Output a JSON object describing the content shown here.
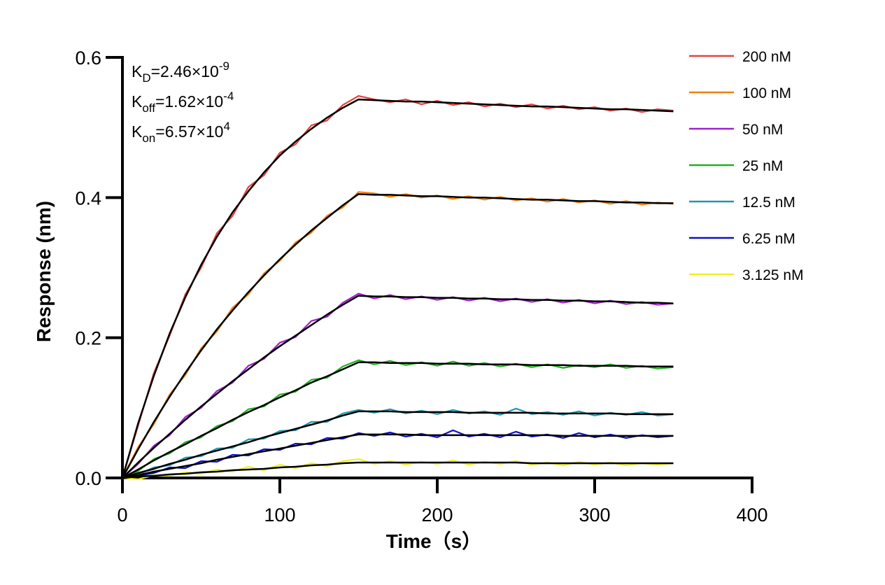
{
  "chart_data": {
    "type": "line",
    "x_label": "Time（s）",
    "y_label": "Response (nm)",
    "x": [
      0,
      10,
      20,
      30,
      40,
      50,
      60,
      70,
      80,
      90,
      100,
      110,
      120,
      130,
      140,
      150,
      160,
      170,
      180,
      190,
      200,
      210,
      220,
      230,
      240,
      250,
      260,
      270,
      280,
      290,
      300,
      310,
      320,
      330,
      340,
      350
    ],
    "xlim": [
      0,
      400
    ],
    "xticks": [
      0,
      100,
      200,
      300,
      400
    ],
    "ylim": [
      0,
      0.6
    ],
    "yticks": [
      {
        "value": 0,
        "label": "0.0"
      },
      0.2,
      0.4,
      0.6
    ],
    "legend": "right",
    "fit_color": "#000000",
    "annotations": [
      {
        "symbol": "K",
        "subscript": "D",
        "text": "=2.46×10",
        "superscript": "-9"
      },
      {
        "symbol": "K",
        "subscript": "off",
        "text": "=1.62×10",
        "superscript": "-4"
      },
      {
        "symbol": "K",
        "subscript": "on",
        "text": "=6.57×10",
        "superscript": "4"
      }
    ],
    "series": [
      {
        "name": "200 nM",
        "color": "#e84040",
        "values": [
          0,
          0.075,
          0.15,
          0.203,
          0.262,
          0.3,
          0.349,
          0.374,
          0.415,
          0.432,
          0.464,
          0.476,
          0.503,
          0.51,
          0.532,
          0.545,
          0.54,
          0.536,
          0.54,
          0.533,
          0.538,
          0.532,
          0.536,
          0.53,
          0.534,
          0.529,
          0.533,
          0.527,
          0.531,
          0.526,
          0.529,
          0.524,
          0.527,
          0.522,
          0.526,
          0.524
        ],
        "fit": [
          0,
          0.078,
          0.146,
          0.206,
          0.258,
          0.304,
          0.344,
          0.379,
          0.409,
          0.436,
          0.46,
          0.48,
          0.498,
          0.514,
          0.528,
          0.54,
          0.539,
          0.538,
          0.537,
          0.537,
          0.536,
          0.535,
          0.534,
          0.533,
          0.532,
          0.531,
          0.53,
          0.53,
          0.529,
          0.528,
          0.527,
          0.526,
          0.526,
          0.525,
          0.524,
          0.523
        ]
      },
      {
        "name": "100 nM",
        "color": "#f08010",
        "values": [
          0,
          0.044,
          0.077,
          0.119,
          0.147,
          0.185,
          0.209,
          0.243,
          0.262,
          0.292,
          0.31,
          0.336,
          0.35,
          0.374,
          0.386,
          0.408,
          0.406,
          0.401,
          0.405,
          0.4,
          0.403,
          0.398,
          0.402,
          0.397,
          0.401,
          0.396,
          0.399,
          0.394,
          0.398,
          0.393,
          0.396,
          0.391,
          0.395,
          0.39,
          0.393,
          0.391
        ],
        "fit": [
          0,
          0.041,
          0.08,
          0.116,
          0.15,
          0.182,
          0.212,
          0.239,
          0.265,
          0.289,
          0.312,
          0.333,
          0.353,
          0.371,
          0.389,
          0.405,
          0.404,
          0.404,
          0.403,
          0.402,
          0.402,
          0.401,
          0.4,
          0.4,
          0.399,
          0.398,
          0.397,
          0.397,
          0.396,
          0.395,
          0.395,
          0.394,
          0.393,
          0.393,
          0.392,
          0.392
        ]
      },
      {
        "name": "50 nM",
        "color": "#a020d0",
        "values": [
          0,
          0.02,
          0.046,
          0.061,
          0.087,
          0.1,
          0.124,
          0.136,
          0.16,
          0.17,
          0.193,
          0.201,
          0.224,
          0.23,
          0.25,
          0.263,
          0.256,
          0.261,
          0.255,
          0.259,
          0.254,
          0.258,
          0.253,
          0.257,
          0.252,
          0.256,
          0.251,
          0.255,
          0.25,
          0.254,
          0.249,
          0.253,
          0.248,
          0.251,
          0.247,
          0.249
        ],
        "fit": [
          0,
          0.022,
          0.043,
          0.063,
          0.083,
          0.102,
          0.12,
          0.138,
          0.155,
          0.172,
          0.188,
          0.203,
          0.218,
          0.233,
          0.247,
          0.26,
          0.259,
          0.259,
          0.258,
          0.258,
          0.257,
          0.257,
          0.256,
          0.256,
          0.255,
          0.255,
          0.254,
          0.254,
          0.253,
          0.253,
          0.252,
          0.252,
          0.251,
          0.25,
          0.25,
          0.249
        ]
      },
      {
        "name": "25 nM",
        "color": "#20b020",
        "values": [
          0,
          0.01,
          0.027,
          0.035,
          0.051,
          0.058,
          0.074,
          0.081,
          0.098,
          0.102,
          0.119,
          0.123,
          0.14,
          0.143,
          0.159,
          0.168,
          0.162,
          0.167,
          0.161,
          0.165,
          0.16,
          0.166,
          0.16,
          0.164,
          0.159,
          0.163,
          0.158,
          0.162,
          0.157,
          0.161,
          0.158,
          0.162,
          0.157,
          0.16,
          0.156,
          0.158
        ],
        "fit": [
          0,
          0.012,
          0.025,
          0.037,
          0.048,
          0.06,
          0.071,
          0.083,
          0.094,
          0.104,
          0.115,
          0.125,
          0.136,
          0.145,
          0.155,
          0.165,
          0.165,
          0.164,
          0.164,
          0.164,
          0.163,
          0.163,
          0.163,
          0.162,
          0.162,
          0.162,
          0.161,
          0.161,
          0.161,
          0.16,
          0.16,
          0.16,
          0.16,
          0.159,
          0.159,
          0.159
        ]
      },
      {
        "name": "12.5 nM",
        "color": "#2098b0",
        "values": [
          0,
          0.005,
          0.015,
          0.018,
          0.029,
          0.031,
          0.042,
          0.043,
          0.055,
          0.056,
          0.067,
          0.068,
          0.08,
          0.08,
          0.092,
          0.097,
          0.093,
          0.098,
          0.092,
          0.096,
          0.091,
          0.097,
          0.092,
          0.095,
          0.09,
          0.099,
          0.091,
          0.094,
          0.09,
          0.095,
          0.089,
          0.093,
          0.09,
          0.094,
          0.089,
          0.091
        ],
        "fit": [
          0,
          0.007,
          0.013,
          0.02,
          0.026,
          0.033,
          0.039,
          0.045,
          0.051,
          0.058,
          0.064,
          0.07,
          0.076,
          0.082,
          0.089,
          0.095,
          0.095,
          0.095,
          0.094,
          0.094,
          0.094,
          0.094,
          0.093,
          0.093,
          0.093,
          0.093,
          0.093,
          0.092,
          0.092,
          0.092,
          0.092,
          0.092,
          0.091,
          0.091,
          0.091,
          0.091
        ]
      },
      {
        "name": "6.25 nM",
        "color": "#1010c8",
        "values": [
          0,
          0.003,
          0.007,
          0.015,
          0.014,
          0.024,
          0.023,
          0.033,
          0.032,
          0.041,
          0.04,
          0.049,
          0.048,
          0.057,
          0.056,
          0.064,
          0.06,
          0.065,
          0.059,
          0.063,
          0.058,
          0.068,
          0.059,
          0.063,
          0.058,
          0.066,
          0.059,
          0.062,
          0.057,
          0.064,
          0.058,
          0.062,
          0.057,
          0.061,
          0.058,
          0.06
        ],
        "fit": [
          0,
          0.004,
          0.009,
          0.013,
          0.017,
          0.021,
          0.026,
          0.03,
          0.034,
          0.038,
          0.042,
          0.046,
          0.05,
          0.054,
          0.058,
          0.062,
          0.062,
          0.062,
          0.062,
          0.061,
          0.061,
          0.061,
          0.061,
          0.061,
          0.061,
          0.061,
          0.061,
          0.061,
          0.06,
          0.06,
          0.06,
          0.06,
          0.06,
          0.06,
          0.06,
          0.06
        ]
      },
      {
        "name": "3.125 nM",
        "color": "#f0f020",
        "values": [
          0,
          -0.002,
          0.004,
          0.003,
          0.008,
          0.006,
          0.012,
          0.009,
          0.016,
          0.011,
          0.019,
          0.014,
          0.021,
          0.017,
          0.024,
          0.027,
          0.02,
          0.024,
          0.019,
          0.023,
          0.02,
          0.025,
          0.019,
          0.023,
          0.02,
          0.024,
          0.019,
          0.022,
          0.018,
          0.023,
          0.019,
          0.022,
          0.018,
          0.021,
          0.019,
          0.021
        ],
        "fit": [
          0,
          0.002,
          0.003,
          0.005,
          0.006,
          0.008,
          0.009,
          0.011,
          0.012,
          0.013,
          0.015,
          0.016,
          0.018,
          0.019,
          0.021,
          0.022,
          0.022,
          0.022,
          0.022,
          0.022,
          0.022,
          0.022,
          0.022,
          0.022,
          0.022,
          0.022,
          0.021,
          0.021,
          0.021,
          0.021,
          0.021,
          0.021,
          0.021,
          0.021,
          0.021,
          0.021
        ]
      }
    ]
  }
}
